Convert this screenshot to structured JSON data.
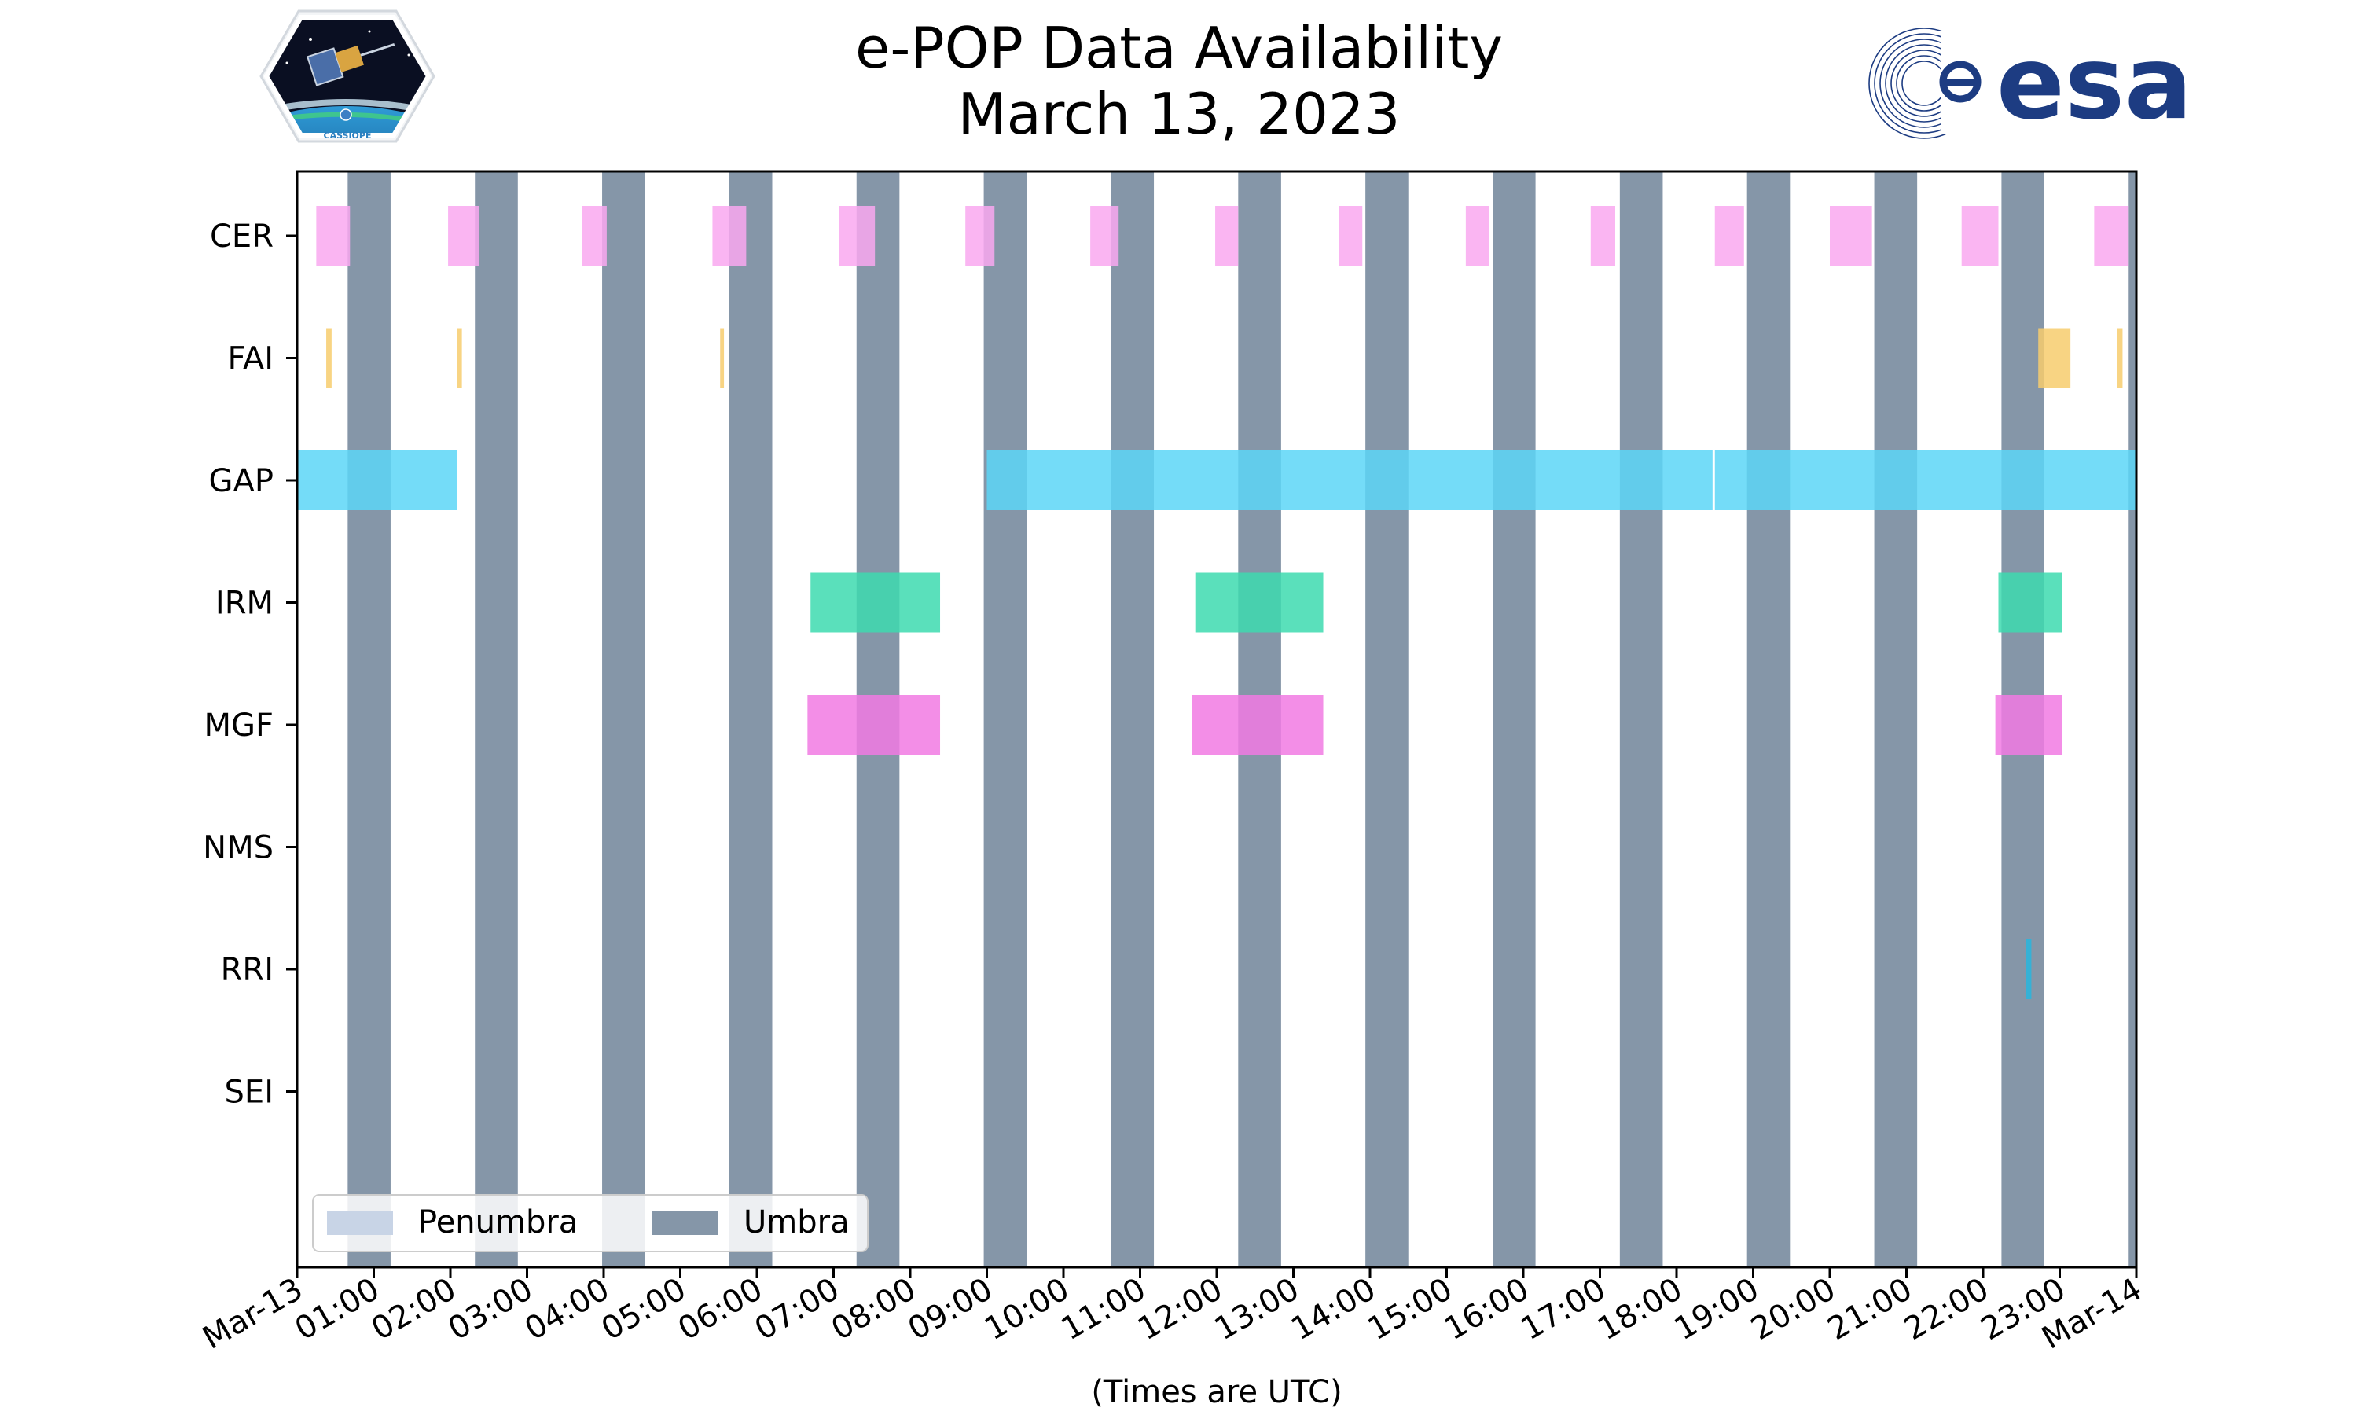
{
  "chart_data": {
    "type": "timeline",
    "title": "e-POP Data Availability",
    "subtitle": "March 13, 2023",
    "xlabel": "(Times are UTC)",
    "x_unit": "hours UTC",
    "xlim": [
      0,
      24
    ],
    "x_ticks": [
      {
        "value": 0,
        "label": "Mar-13"
      },
      {
        "value": 1,
        "label": "01:00"
      },
      {
        "value": 2,
        "label": "02:00"
      },
      {
        "value": 3,
        "label": "03:00"
      },
      {
        "value": 4,
        "label": "04:00"
      },
      {
        "value": 5,
        "label": "05:00"
      },
      {
        "value": 6,
        "label": "06:00"
      },
      {
        "value": 7,
        "label": "07:00"
      },
      {
        "value": 8,
        "label": "08:00"
      },
      {
        "value": 9,
        "label": "09:00"
      },
      {
        "value": 10,
        "label": "10:00"
      },
      {
        "value": 11,
        "label": "11:00"
      },
      {
        "value": 12,
        "label": "12:00"
      },
      {
        "value": 13,
        "label": "13:00"
      },
      {
        "value": 14,
        "label": "14:00"
      },
      {
        "value": 15,
        "label": "15:00"
      },
      {
        "value": 16,
        "label": "16:00"
      },
      {
        "value": 17,
        "label": "17:00"
      },
      {
        "value": 18,
        "label": "18:00"
      },
      {
        "value": 19,
        "label": "19:00"
      },
      {
        "value": 20,
        "label": "20:00"
      },
      {
        "value": 21,
        "label": "21:00"
      },
      {
        "value": 22,
        "label": "22:00"
      },
      {
        "value": 23,
        "label": "23:00"
      },
      {
        "value": 24,
        "label": "Mar-14"
      }
    ],
    "categories": [
      "CER",
      "FAI",
      "GAP",
      "IRM",
      "MGF",
      "NMS",
      "RRI",
      "SEI"
    ],
    "legend": {
      "placement": "lower-left",
      "entries": [
        {
          "name": "Penumbra",
          "color": "#c8d4e6"
        },
        {
          "name": "Umbra",
          "color": "#8596a8"
        }
      ]
    },
    "umbra": [
      [
        0.66,
        1.22
      ],
      [
        2.32,
        2.88
      ],
      [
        3.98,
        4.54
      ],
      [
        5.64,
        6.2
      ],
      [
        7.3,
        7.86
      ],
      [
        8.96,
        9.52
      ],
      [
        10.62,
        11.18
      ],
      [
        12.28,
        12.84
      ],
      [
        13.94,
        14.5
      ],
      [
        15.6,
        16.16
      ],
      [
        17.26,
        17.82
      ],
      [
        18.92,
        19.48
      ],
      [
        20.58,
        21.14
      ],
      [
        22.24,
        22.8
      ],
      [
        23.9,
        24.0
      ]
    ],
    "series": [
      {
        "name": "CER",
        "color": "#f9a8f0",
        "intervals": [
          [
            0.25,
            0.69
          ],
          [
            1.97,
            2.37
          ],
          [
            3.72,
            4.04
          ],
          [
            5.42,
            5.86
          ],
          [
            7.07,
            7.54
          ],
          [
            8.72,
            9.1
          ],
          [
            10.35,
            10.72
          ],
          [
            11.98,
            12.28
          ],
          [
            13.6,
            13.9
          ],
          [
            15.25,
            15.55
          ],
          [
            16.88,
            17.2
          ],
          [
            18.5,
            18.88
          ],
          [
            20.0,
            20.55
          ],
          [
            21.72,
            22.2
          ],
          [
            23.45,
            23.9
          ]
        ]
      },
      {
        "name": "FAI",
        "color": "#f7cd6d",
        "intervals": [
          [
            0.38,
            0.45
          ],
          [
            2.09,
            2.15
          ],
          [
            5.52,
            5.57
          ],
          [
            22.72,
            23.14
          ],
          [
            23.75,
            23.82
          ]
        ]
      },
      {
        "name": "GAP",
        "color": "#5cd6f7",
        "intervals": [
          [
            0.0,
            2.09
          ],
          [
            9.0,
            18.47
          ],
          [
            18.5,
            24.0
          ]
        ]
      },
      {
        "name": "IRM",
        "color": "#3ddbaf",
        "intervals": [
          [
            6.7,
            8.39
          ],
          [
            11.72,
            13.39
          ],
          [
            22.2,
            23.03
          ]
        ]
      },
      {
        "name": "MGF",
        "color": "#f17ae3",
        "intervals": [
          [
            6.66,
            8.39
          ],
          [
            11.68,
            13.39
          ],
          [
            22.16,
            23.03
          ]
        ]
      },
      {
        "name": "NMS",
        "color": "#888888",
        "intervals": []
      },
      {
        "name": "RRI",
        "color": "#27b6de",
        "intervals": [
          [
            22.56,
            22.63
          ]
        ]
      },
      {
        "name": "SEI",
        "color": "#888888",
        "intervals": []
      }
    ]
  },
  "logos": {
    "left": {
      "name": "cassiope-logo",
      "text": "CASSIOPE"
    },
    "right": {
      "name": "esa-logo",
      "text": "esa"
    }
  }
}
